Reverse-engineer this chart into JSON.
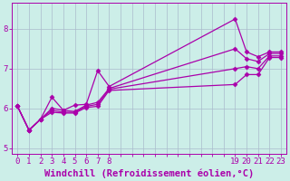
{
  "title": "",
  "xlabel": "Windchill (Refroidissement éolien,°C)",
  "ylabel": "",
  "bg_color": "#cceee8",
  "line_color": "#aa00aa",
  "grid_color": "#aabbcc",
  "axis_color": "#aa00aa",
  "xlim": [
    -0.5,
    23.5
  ],
  "ylim": [
    4.85,
    8.65
  ],
  "xticks_all": [
    0,
    1,
    2,
    3,
    4,
    5,
    6,
    7,
    8,
    9,
    10,
    11,
    12,
    13,
    14,
    15,
    16,
    17,
    18,
    19,
    20,
    21,
    22,
    23
  ],
  "xtick_labels": {
    "0": "0",
    "1": "1",
    "2": "2",
    "3": "3",
    "4": "4",
    "5": "5",
    "6": "6",
    "7": "7",
    "8": "8",
    "9": "",
    "10": "",
    "11": "",
    "12": "",
    "13": "",
    "14": "",
    "15": "",
    "16": "",
    "17": "",
    "18": "",
    "19": "19",
    "20": "20",
    "21": "21",
    "22": "22",
    "23": "23"
  },
  "yticks": [
    5,
    6,
    7,
    8
  ],
  "series": [
    {
      "x": [
        0,
        1,
        2,
        3,
        4,
        5,
        6,
        7,
        8,
        19,
        20,
        21,
        22,
        23
      ],
      "y": [
        6.05,
        5.45,
        5.72,
        6.28,
        5.95,
        6.08,
        6.1,
        6.95,
        6.55,
        8.25,
        7.42,
        7.3,
        7.42,
        7.42
      ]
    },
    {
      "x": [
        0,
        1,
        2,
        3,
        4,
        5,
        6,
        7,
        8,
        19,
        20,
        21,
        22,
        23
      ],
      "y": [
        6.05,
        5.45,
        5.72,
        6.0,
        5.95,
        5.92,
        6.08,
        6.15,
        6.5,
        7.5,
        7.25,
        7.18,
        7.38,
        7.38
      ]
    },
    {
      "x": [
        0,
        1,
        2,
        3,
        4,
        5,
        6,
        7,
        8,
        19,
        20,
        21,
        22,
        23
      ],
      "y": [
        6.05,
        5.45,
        5.72,
        5.95,
        5.9,
        5.9,
        6.05,
        6.1,
        6.48,
        7.0,
        7.05,
        7.0,
        7.32,
        7.32
      ]
    },
    {
      "x": [
        0,
        1,
        2,
        3,
        4,
        5,
        6,
        7,
        8,
        19,
        20,
        21,
        22,
        23
      ],
      "y": [
        6.05,
        5.45,
        5.72,
        5.9,
        5.88,
        5.88,
        6.02,
        6.05,
        6.45,
        6.6,
        6.85,
        6.85,
        7.28,
        7.28
      ]
    }
  ],
  "marker": "D",
  "markersize": 2.5,
  "linewidth": 0.9,
  "xlabel_fontsize": 7.5,
  "tick_fontsize": 6.5
}
